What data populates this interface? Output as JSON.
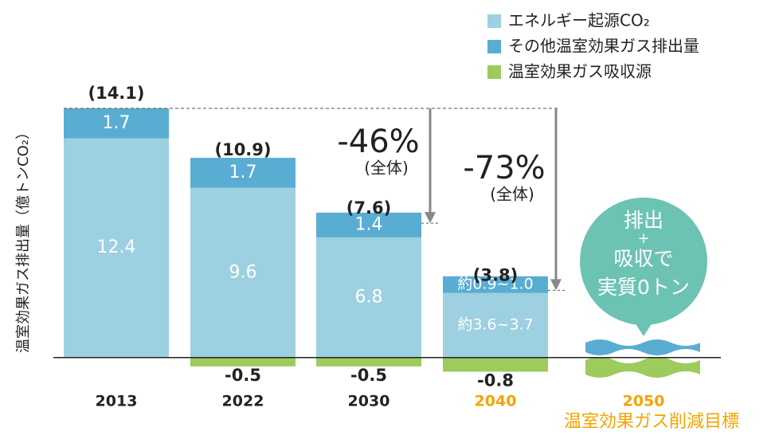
{
  "chart_data": {
    "type": "stacked_bar",
    "y_axis_label": "温室効果ガス排出量（億トンCO₂）",
    "categories": [
      "2013",
      "2022",
      "2030",
      "2040",
      "2050"
    ],
    "category_label_colors": [
      "#222222",
      "#222222",
      "#222222",
      "#f5a300",
      "#f5a300"
    ],
    "subtitle": "温室効果ガス削減目標",
    "series": [
      {
        "name": "エネルギー起源CO₂",
        "color": "#9dd0e0",
        "values": [
          12.4,
          9.6,
          6.8,
          3.65,
          null
        ],
        "value_labels": [
          "12.4",
          "9.6",
          "6.8",
          "約3.6~3.7",
          null
        ]
      },
      {
        "name": "その他温室効果ガス排出量",
        "color": "#5aadd2",
        "values": [
          1.7,
          1.7,
          1.4,
          0.95,
          null
        ],
        "value_labels": [
          "1.7",
          "1.7",
          "1.4",
          "約0.9~1.0",
          null
        ]
      },
      {
        "name": "温室効果ガス吸収源",
        "color": "#9dcb5c",
        "values": [
          null,
          -0.5,
          -0.5,
          -0.8,
          null
        ]
      }
    ],
    "totals": {
      "values": [
        14.1,
        10.9,
        7.6,
        3.8,
        null
      ],
      "value_labels": [
        "(14.1)",
        "(10.9)",
        "(7.6)",
        "(3.8)",
        null
      ]
    },
    "annotations": [
      {
        "text": "-46%",
        "sub": "(全体)"
      },
      {
        "text": "-73%",
        "sub": "(全体)"
      }
    ],
    "bubble": [
      "排出",
      "+",
      "吸収で",
      "実質0トン"
    ],
    "ylim": [
      -1.5,
      15
    ]
  }
}
